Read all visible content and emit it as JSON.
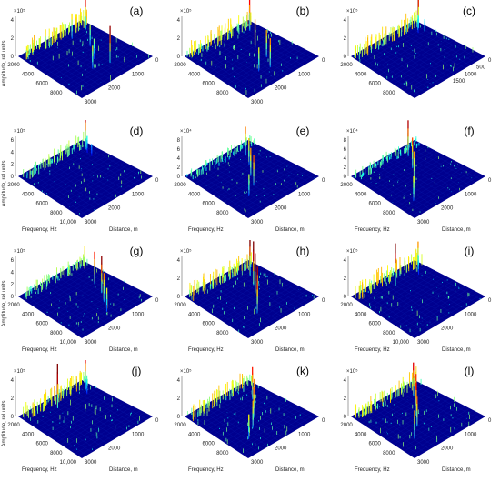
{
  "chart_data": [
    {
      "label": "(a)",
      "type": "surface",
      "exp": "×10⁵",
      "z_ticks": [
        "0",
        "2",
        "4"
      ],
      "freq_ticks": [
        "2000",
        "4000",
        "6000",
        "8000"
      ],
      "dist_ticks": [
        "0",
        "1000",
        "2000",
        "3000"
      ],
      "xlabel": "",
      "dlabel": "",
      "ylabel": "Amplitude, rel.units",
      "peaks": [
        {
          "f": 2000,
          "d": 200,
          "a": 4.4
        },
        {
          "f": 2200,
          "d": 900,
          "a": 2.6
        },
        {
          "f": 4300,
          "d": 800,
          "a": 2.2
        },
        {
          "f": 6000,
          "d": 1200,
          "a": 2.0
        },
        {
          "f": 7500,
          "d": 1000,
          "a": 3.9
        },
        {
          "f": 7000,
          "d": 1600,
          "a": 2.3
        }
      ]
    },
    {
      "label": "(b)",
      "type": "surface",
      "exp": "×10⁵",
      "z_ticks": [
        "0",
        "2",
        "4"
      ],
      "freq_ticks": [
        "2000",
        "4000",
        "6000",
        "8000"
      ],
      "dist_ticks": [
        "0",
        "1000",
        "2000",
        "3000"
      ],
      "xlabel": "",
      "dlabel": "",
      "ylabel": "",
      "peaks": [
        {
          "f": 2000,
          "d": 300,
          "a": 3.5
        },
        {
          "f": 4400,
          "d": 900,
          "a": 3.0
        },
        {
          "f": 6200,
          "d": 1000,
          "a": 2.8
        },
        {
          "f": 7600,
          "d": 1300,
          "a": 3.0
        },
        {
          "f": 7300,
          "d": 1700,
          "a": 2.4
        }
      ]
    },
    {
      "label": "(c)",
      "type": "surface",
      "exp": "×10⁵",
      "z_ticks": [
        "0",
        "2",
        "4"
      ],
      "freq_ticks": [
        "2000",
        "4000",
        "6000",
        "8000"
      ],
      "dist_ticks": [
        "0",
        "500",
        "1000",
        "1500"
      ],
      "xlabel": "",
      "dlabel": "",
      "ylabel": "",
      "peaks": [
        {
          "f": 1900,
          "d": 150,
          "a": 4.2
        },
        {
          "f": 2400,
          "d": 350,
          "a": 1.8
        },
        {
          "f": 3000,
          "d": 250,
          "a": 1.4
        }
      ]
    },
    {
      "label": "(d)",
      "type": "surface",
      "exp": "×10⁵",
      "z_ticks": [
        "0",
        "2",
        "4",
        "6"
      ],
      "freq_ticks": [
        "2000",
        "4000",
        "6000",
        "8000",
        "10,000"
      ],
      "dist_ticks": [
        "0",
        "1000",
        "2000",
        "3000"
      ],
      "xlabel": "Frequency, Hz",
      "dlabel": "Distance, m",
      "ylabel": "Amplitude, rel.units",
      "peaks": [
        {
          "f": 2000,
          "d": 200,
          "a": 5.6
        },
        {
          "f": 2500,
          "d": 300,
          "a": 2.4
        },
        {
          "f": 3200,
          "d": 350,
          "a": 1.6
        }
      ]
    },
    {
      "label": "(e)",
      "type": "surface",
      "exp": "×10⁴",
      "z_ticks": [
        "0",
        "2",
        "4",
        "6",
        "8"
      ],
      "freq_ticks": [
        "2000",
        "4000",
        "6000",
        "8000"
      ],
      "dist_ticks": [
        "0",
        "1000",
        "2000",
        "3000"
      ],
      "xlabel": "Frequency, Hz",
      "dlabel": "Distance, m",
      "ylabel": "",
      "peaks": [
        {
          "f": 2300,
          "d": 600,
          "a": 6.0
        },
        {
          "f": 3600,
          "d": 900,
          "a": 5.5
        },
        {
          "f": 5000,
          "d": 1300,
          "a": 5.8
        },
        {
          "f": 6300,
          "d": 1600,
          "a": 6.3
        },
        {
          "f": 7200,
          "d": 2100,
          "a": 4.4
        }
      ]
    },
    {
      "label": "(f)",
      "type": "surface",
      "exp": "×10⁴",
      "z_ticks": [
        "0",
        "2",
        "4",
        "6",
        "8"
      ],
      "freq_ticks": [
        "2000",
        "4000",
        "6000",
        "8000"
      ],
      "dist_ticks": [
        "0",
        "1000",
        "2000",
        "3000"
      ],
      "xlabel": "Frequency, Hz",
      "dlabel": "Distance, m",
      "ylabel": "",
      "peaks": [
        {
          "f": 2100,
          "d": 700,
          "a": 7.6
        },
        {
          "f": 3800,
          "d": 1100,
          "a": 6.4
        },
        {
          "f": 5200,
          "d": 1500,
          "a": 5.8
        },
        {
          "f": 6500,
          "d": 1900,
          "a": 5.2
        },
        {
          "f": 7600,
          "d": 2300,
          "a": 4.9
        }
      ]
    },
    {
      "label": "(g)",
      "type": "surface",
      "exp": "×10⁵",
      "z_ticks": [
        "0",
        "2",
        "4",
        "6"
      ],
      "freq_ticks": [
        "2000",
        "4000",
        "6000",
        "8000",
        "10,000"
      ],
      "dist_ticks": [
        "0",
        "1000",
        "2000",
        "3000"
      ],
      "xlabel": "Frequency, Hz",
      "dlabel": "Distance, m",
      "ylabel": "Amplitude, rel.units",
      "peaks": [
        {
          "f": 2200,
          "d": 300,
          "a": 3.9
        },
        {
          "f": 4300,
          "d": 600,
          "a": 5.1
        },
        {
          "f": 5800,
          "d": 800,
          "a": 5.9
        },
        {
          "f": 7000,
          "d": 1100,
          "a": 4.5
        },
        {
          "f": 8300,
          "d": 1400,
          "a": 3.6
        }
      ]
    },
    {
      "label": "(h)",
      "type": "surface",
      "exp": "×10⁵",
      "z_ticks": [
        "0",
        "2",
        "4"
      ],
      "freq_ticks": [
        "2000",
        "4000",
        "6000",
        "8000"
      ],
      "dist_ticks": [
        "0",
        "1000",
        "2000",
        "3000"
      ],
      "xlabel": "Frequency, Hz",
      "dlabel": "Distance, m",
      "ylabel": "",
      "peaks": [
        {
          "f": 2600,
          "d": 500,
          "a": 4.0
        },
        {
          "f": 3900,
          "d": 800,
          "a": 4.7
        },
        {
          "f": 5000,
          "d": 1100,
          "a": 4.3
        },
        {
          "f": 6200,
          "d": 1400,
          "a": 3.8
        },
        {
          "f": 7400,
          "d": 1800,
          "a": 3.2
        }
      ]
    },
    {
      "label": "(i)",
      "type": "surface",
      "exp": "×10⁵",
      "z_ticks": [
        "0",
        "2",
        "4"
      ],
      "freq_ticks": [
        "2000",
        "4000",
        "6000",
        "8000",
        "10,000"
      ],
      "dist_ticks": [
        "0",
        "1000",
        "2000",
        "3000"
      ],
      "xlabel": "Frequency, Hz",
      "dlabel": "Distance, m",
      "ylabel": "",
      "peaks": [
        {
          "f": 2400,
          "d": 1400,
          "a": 4.6
        },
        {
          "f": 2000,
          "d": 200,
          "a": 2.9
        },
        {
          "f": 2600,
          "d": 400,
          "a": 1.8
        }
      ]
    },
    {
      "label": "(j)",
      "type": "surface",
      "exp": "×10⁵",
      "z_ticks": [
        "0",
        "2",
        "4"
      ],
      "freq_ticks": [
        "2000",
        "4000",
        "6000",
        "8000",
        "10,000"
      ],
      "dist_ticks": [
        "0",
        "1000",
        "2000",
        "3000"
      ],
      "xlabel": "Frequency, Hz",
      "dlabel": "Distance, m",
      "ylabel": "Amplitude, rel.units",
      "peaks": [
        {
          "f": 2300,
          "d": 1600,
          "a": 4.8
        },
        {
          "f": 2000,
          "d": 200,
          "a": 3.6
        },
        {
          "f": 2600,
          "d": 350,
          "a": 1.8
        }
      ]
    },
    {
      "label": "(k)",
      "type": "surface",
      "exp": "×10⁵",
      "z_ticks": [
        "0",
        "2",
        "4"
      ],
      "freq_ticks": [
        "2000",
        "4000",
        "6000",
        "8000"
      ],
      "dist_ticks": [
        "0",
        "1000",
        "2000",
        "3000"
      ],
      "xlabel": "Frequency, Hz",
      "dlabel": "Distance, m",
      "ylabel": "",
      "peaks": [
        {
          "f": 3200,
          "d": 600,
          "a": 3.4
        },
        {
          "f": 4300,
          "d": 900,
          "a": 3.0
        },
        {
          "f": 5400,
          "d": 1300,
          "a": 3.2
        },
        {
          "f": 6500,
          "d": 1700,
          "a": 2.8
        },
        {
          "f": 7500,
          "d": 2200,
          "a": 2.5
        }
      ]
    },
    {
      "label": "(l)",
      "type": "surface",
      "exp": "×10⁵",
      "z_ticks": [
        "0",
        "2",
        "4"
      ],
      "freq_ticks": [
        "2000",
        "4000",
        "6000",
        "8000"
      ],
      "dist_ticks": [
        "0",
        "1000",
        "2000",
        "3000"
      ],
      "xlabel": "Frequency, Hz",
      "dlabel": "Distance, m",
      "ylabel": "",
      "peaks": [
        {
          "f": 2500,
          "d": 600,
          "a": 3.6
        },
        {
          "f": 3700,
          "d": 900,
          "a": 3.3
        },
        {
          "f": 4900,
          "d": 1300,
          "a": 3.5
        },
        {
          "f": 6200,
          "d": 1700,
          "a": 3.1
        },
        {
          "f": 7400,
          "d": 2200,
          "a": 2.9
        }
      ]
    }
  ]
}
